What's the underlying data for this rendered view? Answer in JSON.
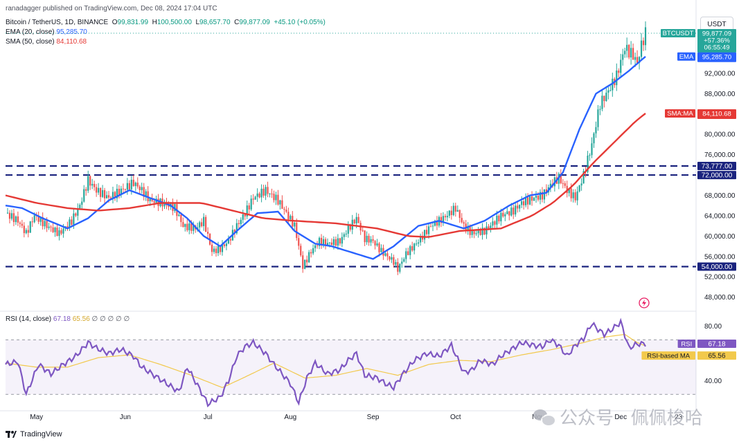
{
  "header": {
    "published": "ranadagger published on TradingView.com, Dec 08, 2024 17:04 UTC",
    "symbol_line": "Bitcoin / TetherUS, 1D, BINANCE",
    "ohlc": {
      "o_label": "O",
      "o": "99,831.99",
      "h_label": "H",
      "h": "100,500.00",
      "l_label": "L",
      "l": "98,657.70",
      "c_label": "C",
      "c": "99,877.09",
      "change": "+45.10 (+0.05%)"
    },
    "ema_label": "EMA (20, close)",
    "ema_value": "95,285.70",
    "sma_label": "SMA (50, close)",
    "sma_value": "84,110.68",
    "rsi_label": "RSI (14, close)",
    "rsi_value": "67.18",
    "rsi_ma_value": "65.56",
    "rsi_extra": "∅ ∅ ∅ ∅ ∅"
  },
  "currency": "USDT",
  "footer": {
    "brand": "TradingView"
  },
  "watermark": "公众号 · 佩佩梭哈",
  "colors": {
    "up": "#26a69a",
    "down": "#ef5350",
    "ema": "#2962ff",
    "sma": "#e53935",
    "level": "#1a237e",
    "rsi": "#7e57c2",
    "rsi_ma": "#f2c94c",
    "axis_text": "#131722"
  },
  "chart_data": [
    {
      "type": "candlestick",
      "title": "Bitcoin / TetherUS, 1D, BINANCE",
      "x_axis_labels": [
        "May",
        "Jun",
        "Jul",
        "Aug",
        "Sep",
        "Oct",
        "Nov",
        "Dec",
        "23"
      ],
      "y_axis_labels": [
        "48,000.00",
        "52,000.00",
        "56,000.00",
        "60,000.00",
        "64,000.00",
        "68,000.00",
        "72,000.00",
        "76,000.00",
        "80,000.00",
        "88,000.00",
        "92,000.00"
      ],
      "ylim": [
        45500,
        104500
      ],
      "horizontal_levels": [
        {
          "value": 73777,
          "label": "73,777.00"
        },
        {
          "value": 72000,
          "label": "72,000.00"
        },
        {
          "value": 54000,
          "label": "54,000.00"
        }
      ],
      "price_tags": [
        {
          "name": "BTCUSDT",
          "lines": [
            "99,877.09",
            "+57.36%",
            "06:55:49"
          ],
          "value": 99877.09
        },
        {
          "name": "EMA",
          "lines": [
            "95,285.70"
          ],
          "value": 95285.7
        },
        {
          "name": "SMA:MA",
          "lines": [
            "84,110.68"
          ],
          "value": 84110.68
        }
      ],
      "series": [
        {
          "name": "EMA (20, close)",
          "keypoints": [
            [
              0,
              66000
            ],
            [
              8,
              65500
            ],
            [
              18,
              63500
            ],
            [
              30,
              61500
            ],
            [
              40,
              63500
            ],
            [
              50,
              67000
            ],
            [
              60,
              69000
            ],
            [
              70,
              67500
            ],
            [
              80,
              66000
            ],
            [
              88,
              63500
            ],
            [
              96,
              60000
            ],
            [
              104,
              58000
            ],
            [
              112,
              61000
            ],
            [
              122,
              64500
            ],
            [
              132,
              64800
            ],
            [
              140,
              61000
            ],
            [
              150,
              58500
            ],
            [
              158,
              58000
            ],
            [
              170,
              56500
            ],
            [
              178,
              55500
            ],
            [
              188,
              58000
            ],
            [
              200,
              62000
            ],
            [
              210,
              63000
            ],
            [
              222,
              61500
            ],
            [
              232,
              63000
            ],
            [
              244,
              66000
            ],
            [
              254,
              68000
            ],
            [
              262,
              68500
            ],
            [
              270,
              72500
            ],
            [
              278,
              81000
            ],
            [
              286,
              88000
            ],
            [
              294,
              90000
            ],
            [
              302,
              92500
            ],
            [
              310,
              95285
            ]
          ]
        },
        {
          "name": "SMA (50, close)",
          "keypoints": [
            [
              0,
              68000
            ],
            [
              15,
              66500
            ],
            [
              30,
              65500
            ],
            [
              45,
              65000
            ],
            [
              60,
              65500
            ],
            [
              75,
              66500
            ],
            [
              95,
              66500
            ],
            [
              110,
              65000
            ],
            [
              125,
              63500
            ],
            [
              140,
              63000
            ],
            [
              160,
              62500
            ],
            [
              180,
              61500
            ],
            [
              195,
              60000
            ],
            [
              205,
              59800
            ],
            [
              220,
              61000
            ],
            [
              240,
              61500
            ],
            [
              255,
              64000
            ],
            [
              265,
              66500
            ],
            [
              275,
              70000
            ],
            [
              285,
              74500
            ],
            [
              295,
              78500
            ],
            [
              305,
              82500
            ],
            [
              310,
              84110
            ]
          ]
        },
        {
          "name": "Price (close)",
          "keypoints": [
            [
              0,
              64500
            ],
            [
              6,
              63000
            ],
            [
              10,
              60500
            ],
            [
              14,
              64000
            ],
            [
              20,
              62000
            ],
            [
              26,
              60500
            ],
            [
              32,
              63000
            ],
            [
              36,
              66000
            ],
            [
              40,
              71000
            ],
            [
              44,
              69000
            ],
            [
              50,
              67500
            ],
            [
              56,
              69000
            ],
            [
              62,
              70500
            ],
            [
              66,
              69000
            ],
            [
              70,
              67000
            ],
            [
              76,
              66500
            ],
            [
              82,
              65500
            ],
            [
              86,
              62000
            ],
            [
              92,
              61500
            ],
            [
              96,
              63000
            ],
            [
              100,
              57000
            ],
            [
              104,
              57500
            ],
            [
              108,
              59000
            ],
            [
              112,
              62000
            ],
            [
              116,
              64500
            ],
            [
              120,
              67500
            ],
            [
              126,
              69000
            ],
            [
              132,
              67000
            ],
            [
              136,
              64500
            ],
            [
              140,
              62000
            ],
            [
              144,
              54000
            ],
            [
              148,
              57000
            ],
            [
              152,
              59000
            ],
            [
              156,
              58500
            ],
            [
              162,
              59000
            ],
            [
              166,
              61500
            ],
            [
              170,
              63500
            ],
            [
              174,
              59500
            ],
            [
              178,
              59000
            ],
            [
              182,
              57000
            ],
            [
              188,
              55000
            ],
            [
              190,
              53500
            ],
            [
              194,
              56500
            ],
            [
              200,
              59000
            ],
            [
              206,
              62000
            ],
            [
              212,
              63500
            ],
            [
              218,
              65500
            ],
            [
              222,
              62000
            ],
            [
              226,
              60500
            ],
            [
              232,
              61000
            ],
            [
              236,
              62500
            ],
            [
              240,
              64000
            ],
            [
              246,
              65000
            ],
            [
              250,
              66500
            ],
            [
              256,
              67500
            ],
            [
              260,
              68000
            ],
            [
              264,
              70000
            ],
            [
              268,
              71500
            ],
            [
              272,
              69000
            ],
            [
              276,
              67500
            ],
            [
              280,
              72000
            ],
            [
              284,
              78000
            ],
            [
              288,
              86000
            ],
            [
              292,
              88500
            ],
            [
              296,
              91500
            ],
            [
              300,
              97000
            ],
            [
              304,
              95500
            ],
            [
              306,
              94000
            ],
            [
              308,
              97500
            ],
            [
              310,
              99877
            ]
          ]
        }
      ]
    },
    {
      "type": "line",
      "title": "RSI (14, close)",
      "y_axis_labels": [
        "40.00",
        "80.00"
      ],
      "ylim": [
        20,
        90
      ],
      "bands": [
        70,
        30
      ],
      "price_tags": [
        {
          "name": "RSI",
          "lines": [
            "67.18"
          ],
          "value": 67.18
        },
        {
          "name": "RSI-based MA",
          "lines": [
            "65.56"
          ],
          "value": 65.56
        }
      ],
      "series": [
        {
          "name": "RSI",
          "keypoints": [
            [
              0,
              52
            ],
            [
              6,
              54
            ],
            [
              10,
              30
            ],
            [
              16,
              52
            ],
            [
              22,
              45
            ],
            [
              28,
              52
            ],
            [
              34,
              58
            ],
            [
              40,
              68
            ],
            [
              44,
              64
            ],
            [
              50,
              60
            ],
            [
              56,
              63
            ],
            [
              62,
              58
            ],
            [
              66,
              50
            ],
            [
              72,
              44
            ],
            [
              78,
              38
            ],
            [
              84,
              32
            ],
            [
              88,
              50
            ],
            [
              94,
              34
            ],
            [
              98,
              23
            ],
            [
              104,
              28
            ],
            [
              108,
              40
            ],
            [
              112,
              58
            ],
            [
              116,
              65
            ],
            [
              120,
              68
            ],
            [
              126,
              60
            ],
            [
              130,
              52
            ],
            [
              134,
              45
            ],
            [
              138,
              38
            ],
            [
              142,
              24
            ],
            [
              146,
              42
            ],
            [
              150,
              53
            ],
            [
              156,
              45
            ],
            [
              162,
              48
            ],
            [
              166,
              55
            ],
            [
              170,
              60
            ],
            [
              174,
              44
            ],
            [
              180,
              42
            ],
            [
              184,
              38
            ],
            [
              188,
              35
            ],
            [
              192,
              44
            ],
            [
              198,
              55
            ],
            [
              204,
              60
            ],
            [
              210,
              58
            ],
            [
              216,
              66
            ],
            [
              222,
              46
            ],
            [
              226,
              48
            ],
            [
              230,
              55
            ],
            [
              236,
              52
            ],
            [
              240,
              58
            ],
            [
              246,
              64
            ],
            [
              250,
              68
            ],
            [
              256,
              66
            ],
            [
              260,
              65
            ],
            [
              264,
              70
            ],
            [
              268,
              66
            ],
            [
              272,
              58
            ],
            [
              276,
              66
            ],
            [
              280,
              71
            ],
            [
              284,
              82
            ],
            [
              286,
              79
            ],
            [
              290,
              74
            ],
            [
              294,
              78
            ],
            [
              298,
              83
            ],
            [
              302,
              64
            ],
            [
              306,
              67
            ],
            [
              310,
              67.18
            ]
          ]
        },
        {
          "name": "RSI-based MA",
          "keypoints": [
            [
              0,
              53
            ],
            [
              15,
              50
            ],
            [
              30,
              50
            ],
            [
              45,
              57
            ],
            [
              60,
              59
            ],
            [
              75,
              52
            ],
            [
              90,
              44
            ],
            [
              105,
              35
            ],
            [
              115,
              42
            ],
            [
              130,
              53
            ],
            [
              145,
              42
            ],
            [
              160,
              44
            ],
            [
              175,
              49
            ],
            [
              190,
              44
            ],
            [
              205,
              52
            ],
            [
              220,
              55
            ],
            [
              235,
              54
            ],
            [
              250,
              59
            ],
            [
              265,
              63
            ],
            [
              280,
              68
            ],
            [
              290,
              72
            ],
            [
              300,
              74
            ],
            [
              306,
              68
            ],
            [
              310,
              65.56
            ]
          ]
        }
      ]
    }
  ]
}
